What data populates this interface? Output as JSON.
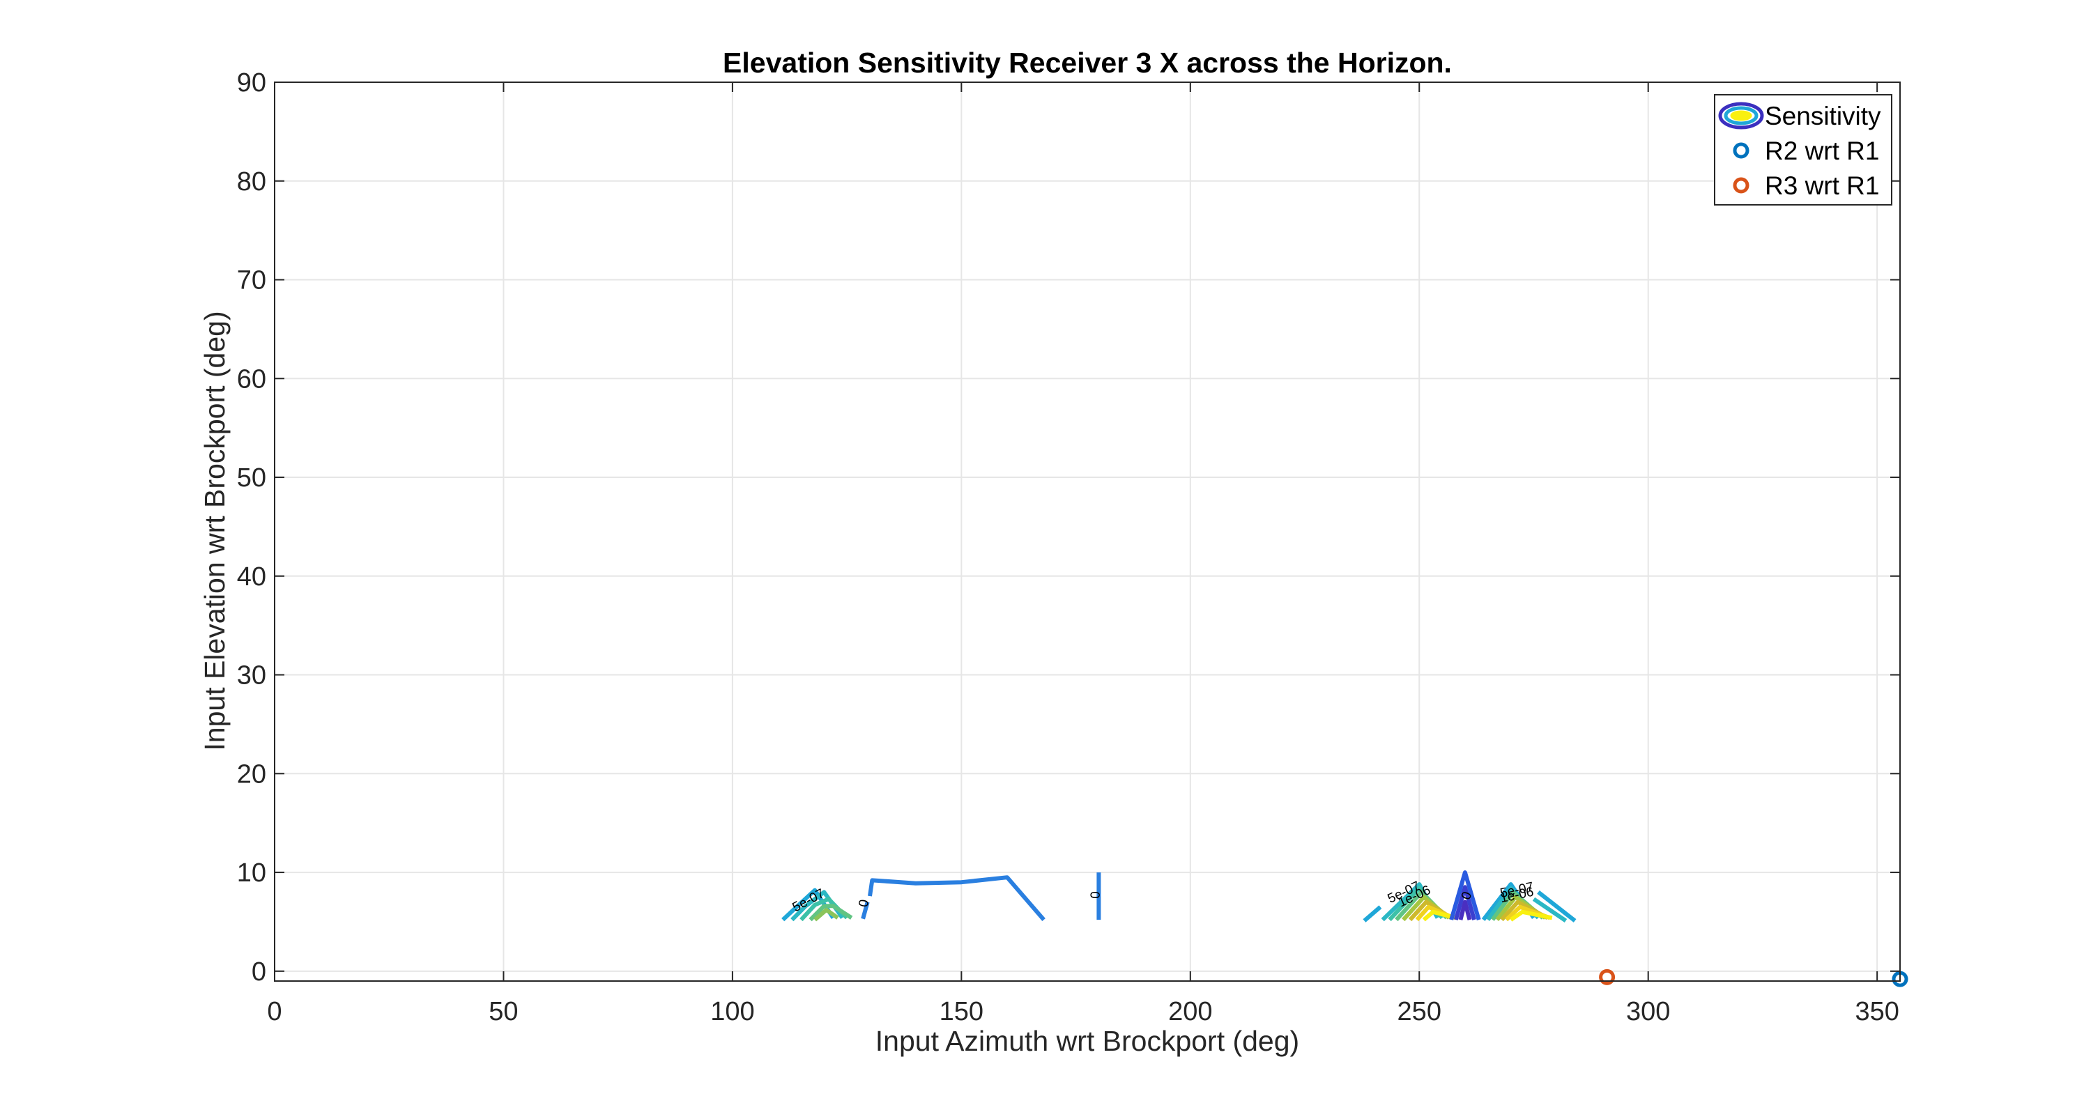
{
  "chart_data": {
    "type": "contour",
    "title": "Elevation Sensitivity Receiver 3 X across the Horizon.",
    "xlabel": "Input Azimuth wrt Brockport (deg)",
    "ylabel": "Input Elevation wrt Brockport (deg)",
    "xlim": [
      0,
      355
    ],
    "ylim": [
      -1,
      90
    ],
    "xticks": [
      0,
      50,
      100,
      150,
      200,
      250,
      300,
      350
    ],
    "yticks": [
      0,
      10,
      20,
      30,
      40,
      50,
      60,
      70,
      80,
      90
    ],
    "xtick_labels": [
      "0",
      "50",
      "100",
      "150",
      "200",
      "250",
      "300",
      "350"
    ],
    "ytick_labels": [
      "0",
      "10",
      "20",
      "30",
      "40",
      "50",
      "60",
      "70",
      "80",
      "90"
    ],
    "grid": true,
    "legend_position": "top-right",
    "legend": [
      {
        "name": "Sensitivity",
        "marker": "contour",
        "color": "#3b2fbf"
      },
      {
        "name": "R2 wrt R1",
        "marker": "circle",
        "color": "#0072bd"
      },
      {
        "name": "R3 wrt R1",
        "marker": "circle",
        "color": "#d95319"
      }
    ],
    "contours": [
      {
        "color": "#1fa7d8",
        "points": [
          [
            111,
            5.2
          ],
          [
            114,
            6.5
          ],
          [
            118,
            8.2
          ],
          [
            122,
            5.4
          ]
        ]
      },
      {
        "color": "#2bb8c4",
        "points": [
          [
            113,
            5.2
          ],
          [
            116,
            6.6
          ],
          [
            120,
            8
          ],
          [
            124,
            5.4
          ]
        ]
      },
      {
        "color": "#3cc1a8",
        "points": [
          [
            115,
            5.2
          ],
          [
            118,
            6.7
          ],
          [
            121,
            7.3
          ],
          [
            125,
            5.4
          ]
        ]
      },
      {
        "color": "#61c483",
        "points": [
          [
            117,
            5.2
          ],
          [
            120,
            6.6
          ],
          [
            122,
            6.6
          ],
          [
            126,
            5.4
          ]
        ]
      },
      {
        "color": "#8bc45a",
        "points": [
          [
            118,
            5.2
          ],
          [
            120.5,
            6.2
          ],
          [
            123,
            5.4
          ]
        ]
      },
      {
        "color": "#2a7fe0",
        "points": [
          [
            128.5,
            5.3
          ],
          [
            129.5,
            7
          ]
        ]
      },
      {
        "color": "#2a7fe0",
        "points": [
          [
            130,
            7.6
          ],
          [
            130.5,
            9.2
          ],
          [
            140,
            8.9
          ],
          [
            150,
            9
          ],
          [
            160,
            9.5
          ],
          [
            168,
            5.2
          ]
        ]
      },
      {
        "color": "#2a7fe0",
        "points": [
          [
            180,
            5.2
          ],
          [
            180,
            10
          ]
        ]
      },
      {
        "color": "#1fa7d8",
        "points": [
          [
            238,
            5.1
          ],
          [
            241.5,
            6.5
          ]
        ]
      },
      {
        "color": "#2bb8c4",
        "points": [
          [
            242,
            5.2
          ],
          [
            250,
            8.8
          ],
          [
            254,
            5.4
          ]
        ]
      },
      {
        "color": "#3cc1a8",
        "points": [
          [
            243.5,
            5.2
          ],
          [
            250,
            8.4
          ],
          [
            255,
            5.4
          ]
        ]
      },
      {
        "color": "#61c483",
        "points": [
          [
            245,
            5.2
          ],
          [
            250.5,
            8
          ],
          [
            256,
            5.4
          ]
        ]
      },
      {
        "color": "#a5c640",
        "points": [
          [
            246.5,
            5.2
          ],
          [
            251,
            7.5
          ],
          [
            256.5,
            5.4
          ]
        ]
      },
      {
        "color": "#cdb92c",
        "points": [
          [
            248,
            5.2
          ],
          [
            251.5,
            7
          ],
          [
            257,
            5.4
          ]
        ]
      },
      {
        "color": "#f0d21e",
        "points": [
          [
            249.5,
            5.2
          ],
          [
            252,
            6.5
          ],
          [
            257.5,
            5.4
          ]
        ]
      },
      {
        "color": "#f9f010",
        "points": [
          [
            251,
            5.2
          ],
          [
            253,
            6
          ],
          [
            258,
            5.4
          ]
        ]
      },
      {
        "color": "#2a5be0",
        "points": [
          [
            257,
            5.2
          ],
          [
            260,
            10
          ],
          [
            263,
            5.2
          ]
        ]
      },
      {
        "color": "#3a3fd0",
        "points": [
          [
            258,
            5.2
          ],
          [
            260,
            8.5
          ],
          [
            262,
            5.2
          ]
        ]
      },
      {
        "color": "#4a2fc0",
        "points": [
          [
            259,
            5.2
          ],
          [
            260,
            7
          ],
          [
            261,
            5.2
          ]
        ]
      },
      {
        "color": "#1fa7d8",
        "points": [
          [
            264,
            5.2
          ],
          [
            270,
            8.8
          ],
          [
            275,
            5.4
          ]
        ]
      },
      {
        "color": "#2bb8c4",
        "points": [
          [
            265,
            5.2
          ],
          [
            270,
            8.4
          ],
          [
            276,
            5.4
          ]
        ]
      },
      {
        "color": "#61c483",
        "points": [
          [
            266,
            5.2
          ],
          [
            270.5,
            8
          ],
          [
            277,
            5.4
          ]
        ]
      },
      {
        "color": "#a5c640",
        "points": [
          [
            267,
            5.2
          ],
          [
            271,
            7.5
          ],
          [
            277.5,
            5.4
          ]
        ]
      },
      {
        "color": "#cdb92c",
        "points": [
          [
            268,
            5.2
          ],
          [
            271.5,
            7
          ],
          [
            278,
            5.4
          ]
        ]
      },
      {
        "color": "#f0d21e",
        "points": [
          [
            269,
            5.2
          ],
          [
            272,
            6.5
          ],
          [
            278.5,
            5.4
          ]
        ]
      },
      {
        "color": "#f9f010",
        "points": [
          [
            270,
            5.2
          ],
          [
            272.5,
            6
          ],
          [
            279,
            5.4
          ]
        ]
      },
      {
        "color": "#1fa7d8",
        "points": [
          [
            276,
            8
          ],
          [
            284,
            5.1
          ]
        ]
      },
      {
        "color": "#2bb8c4",
        "points": [
          [
            275,
            7.3
          ],
          [
            282,
            5.1
          ]
        ]
      }
    ],
    "contour_labels": [
      {
        "text": "5e-07",
        "x": 117,
        "y": 6.8,
        "rotation": -28
      },
      {
        "text": "0",
        "x": 129.6,
        "y": 6.8,
        "rotation": -80
      },
      {
        "text": "0",
        "x": 180.2,
        "y": 7.7,
        "rotation": -88
      },
      {
        "text": "5e-07",
        "x": 247,
        "y": 7.6,
        "rotation": -25
      },
      {
        "text": "1e-06",
        "x": 249.3,
        "y": 7.2,
        "rotation": -25
      },
      {
        "text": "0",
        "x": 261.2,
        "y": 7.5,
        "rotation": -70
      },
      {
        "text": "5e-07",
        "x": 271.5,
        "y": 7.8,
        "rotation": -12
      },
      {
        "text": "1e-06",
        "x": 271.5,
        "y": 7.3,
        "rotation": -12
      }
    ],
    "series": [
      {
        "name": "R2 wrt R1",
        "color": "#0072bd",
        "points": [
          [
            355,
            -0.8
          ]
        ]
      },
      {
        "name": "R3 wrt R1",
        "color": "#d95319",
        "points": [
          [
            291,
            -0.6
          ]
        ]
      }
    ]
  }
}
